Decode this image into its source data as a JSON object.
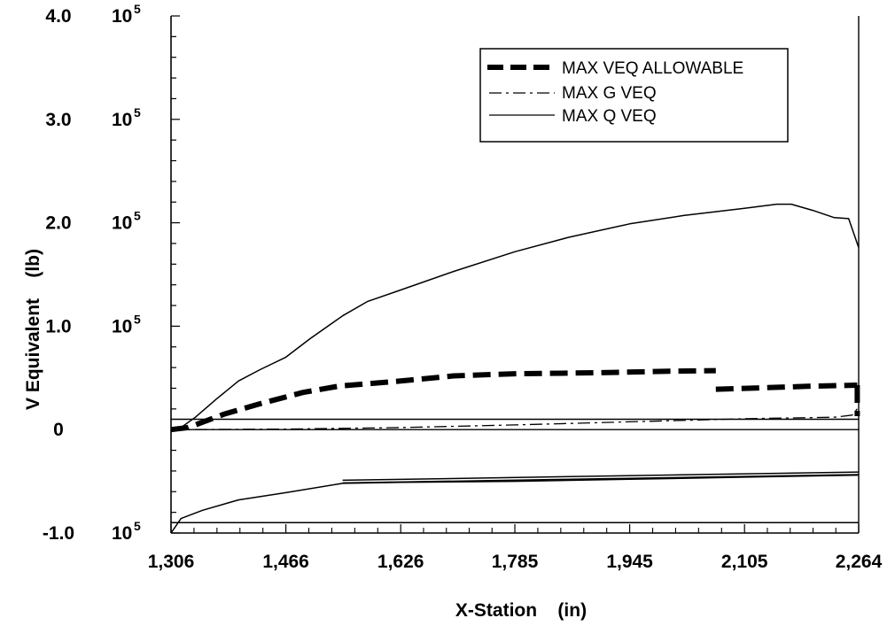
{
  "chart_data": {
    "type": "line",
    "xlabel": "X-Station    (in)",
    "ylabel": "V Equivalent    (lb)",
    "xlim": [
      1306,
      2264
    ],
    "ylim": [
      -100000,
      400000
    ],
    "x_ticks": [
      1306,
      1466,
      1626,
      1785,
      1945,
      2105,
      2264
    ],
    "x_tick_labels": [
      "1,306",
      "1,466",
      "1,626",
      "1,785",
      "1,945",
      "2,105",
      "2,264"
    ],
    "y_ticks": [
      {
        "value": 400000,
        "mantissa": "4.0",
        "base": "10",
        "exp": "5"
      },
      {
        "value": 300000,
        "mantissa": "3.0",
        "base": "10",
        "exp": "5"
      },
      {
        "value": 200000,
        "mantissa": "2.0",
        "base": "10",
        "exp": "5"
      },
      {
        "value": 100000,
        "mantissa": "1.0",
        "base": "10",
        "exp": "5"
      },
      {
        "value": 0,
        "mantissa": "0",
        "base": "",
        "exp": ""
      },
      {
        "value": -100000,
        "mantissa": "-1.0",
        "base": "10",
        "exp": "5"
      }
    ],
    "grid": false,
    "legend_position": "top-right",
    "series": [
      {
        "name": "MAX VEQ ALLOWABLE",
        "style": "dashed-thick",
        "segments": [
          [
            [
              1306,
              0
            ],
            [
              1330,
              2000
            ],
            [
              1380,
              15000
            ],
            [
              1430,
              25000
            ],
            [
              1490,
              36000
            ],
            [
              1540,
              42000
            ],
            [
              1626,
              47000
            ],
            [
              1700,
              52000
            ],
            [
              1785,
              54000
            ],
            [
              1900,
              55000
            ],
            [
              2000,
              56500
            ],
            [
              2065,
              57000
            ]
          ],
          [
            [
              2065,
              39000
            ],
            [
              2110,
              40000
            ],
            [
              2200,
              42000
            ],
            [
              2262,
              43000
            ]
          ],
          [
            [
              2262,
              43000
            ],
            [
              2262,
              13000
            ]
          ]
        ]
      },
      {
        "name": "MAX G VEQ",
        "style": "dash-dot",
        "segments": [
          [
            [
              1306,
              0
            ],
            [
              1466,
              500
            ],
            [
              1626,
              2000
            ],
            [
              1785,
              4500
            ],
            [
              1945,
              7500
            ],
            [
              2105,
              10500
            ],
            [
              2230,
              12000
            ],
            [
              2255,
              14000
            ],
            [
              2262,
              20000
            ]
          ]
        ]
      },
      {
        "name": "MAX Q VEQ",
        "style": "solid-thin",
        "segments": [
          [
            [
              1306,
              0
            ],
            [
              1320,
              2000
            ],
            [
              1340,
              12000
            ],
            [
              1370,
              30000
            ],
            [
              1400,
              47000
            ],
            [
              1430,
              58000
            ],
            [
              1466,
              70000
            ],
            [
              1500,
              88000
            ],
            [
              1545,
              110000
            ],
            [
              1580,
              124000
            ],
            [
              1626,
              135000
            ],
            [
              1700,
              153000
            ],
            [
              1785,
              172000
            ],
            [
              1860,
              186000
            ],
            [
              1945,
              199000
            ],
            [
              2020,
              207000
            ],
            [
              2105,
              214000
            ],
            [
              2150,
              218000
            ],
            [
              2170,
              218000
            ],
            [
              2200,
              212000
            ],
            [
              2230,
              205000
            ],
            [
              2250,
              204000
            ],
            [
              2264,
              176000
            ]
          ],
          [
            [
              1306,
              10000
            ],
            [
              2264,
              10000
            ]
          ],
          [
            [
              1306,
              -100000
            ],
            [
              1320,
              -86000
            ],
            [
              1350,
              -78000
            ],
            [
              1400,
              -68000
            ],
            [
              1466,
              -61000
            ],
            [
              1545,
              -52000
            ],
            [
              1626,
              -51000
            ],
            [
              1785,
              -50000
            ],
            [
              1945,
              -48000
            ],
            [
              2105,
              -46000
            ],
            [
              2264,
              -44000
            ]
          ],
          [
            [
              1545,
              -49000
            ],
            [
              2264,
              -41000
            ]
          ],
          [
            [
              1545,
              -51500
            ],
            [
              2264,
              -43500
            ]
          ],
          [
            [
              1306,
              -90000
            ],
            [
              2264,
              -90000
            ]
          ]
        ]
      }
    ]
  }
}
